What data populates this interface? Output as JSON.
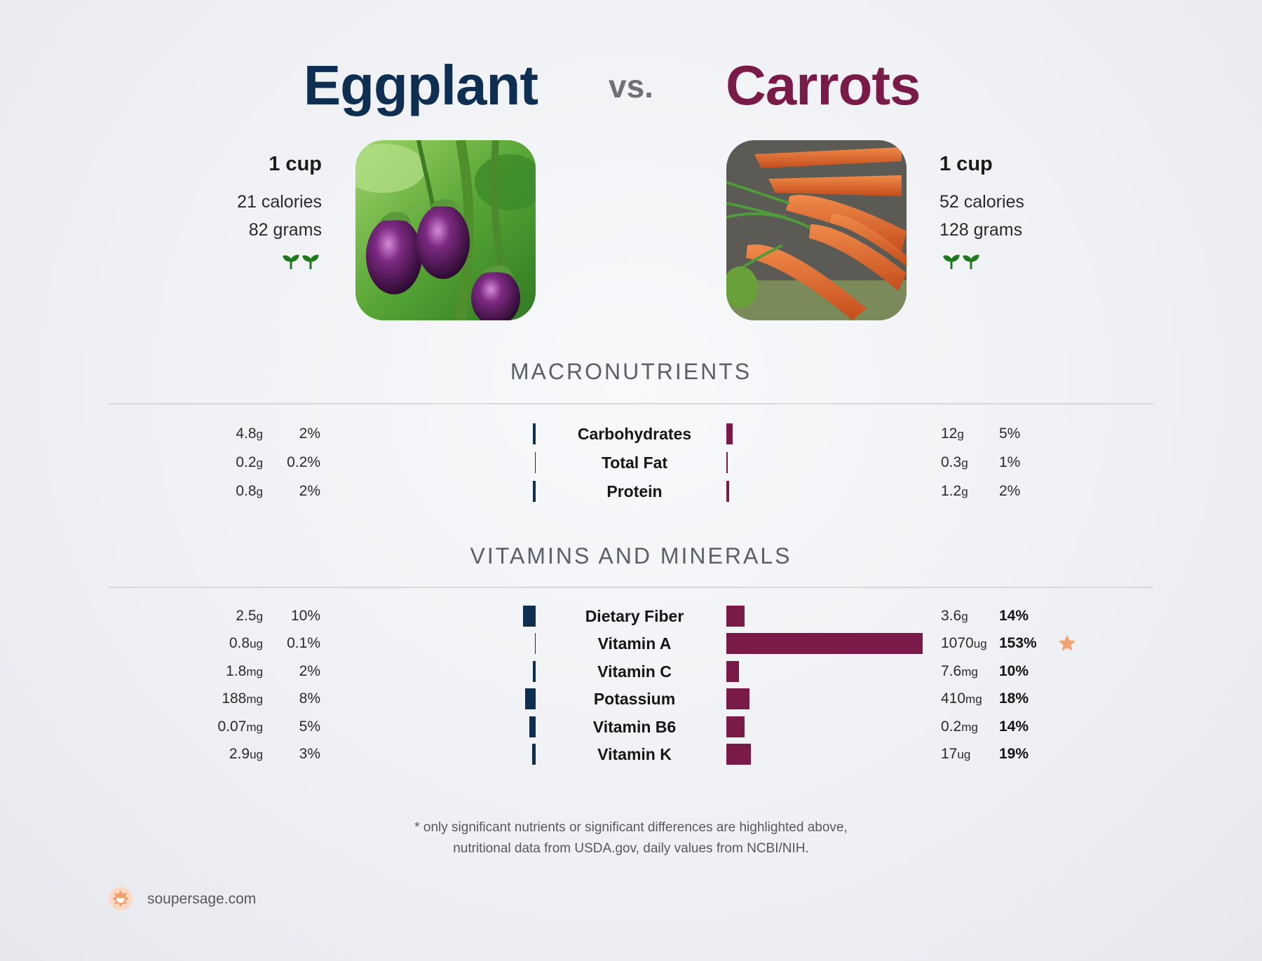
{
  "header": {
    "left_title": "Eggplant",
    "vs": "vs.",
    "right_title": "Carrots"
  },
  "left_food": {
    "serving": "1 cup",
    "calories": "21 calories",
    "grams": "82 grams",
    "icon": "sprouts-icon"
  },
  "right_food": {
    "serving": "1 cup",
    "calories": "52 calories",
    "grams": "128 grams",
    "icon": "sprouts-icon"
  },
  "sections": {
    "macros_title": "MACRONUTRIENTS",
    "vitamins_title": "VITAMINS AND MINERALS"
  },
  "colors": {
    "left": "#0e2e52",
    "right": "#7a1a48",
    "star": "#f2a06e",
    "sprout": "#1f7a1f"
  },
  "chart_data": [
    {
      "type": "bar",
      "title": "MACRONUTRIENTS",
      "categories": [
        "Carbohydrates",
        "Total Fat",
        "Protein"
      ],
      "series": [
        {
          "name": "Eggplant",
          "amounts": [
            "4.8",
            "0.2",
            "0.8"
          ],
          "units": [
            "g",
            "g",
            "g"
          ],
          "percent_labels": [
            "2%",
            "0.2%",
            "2%"
          ],
          "values": [
            2,
            0.2,
            2
          ]
        },
        {
          "name": "Carrots",
          "amounts": [
            "12",
            "0.3",
            "1.2"
          ],
          "units": [
            "g",
            "g",
            "g"
          ],
          "percent_labels": [
            "5%",
            "1%",
            "2%"
          ],
          "values": [
            5,
            1,
            2
          ]
        }
      ]
    },
    {
      "type": "bar",
      "title": "VITAMINS AND MINERALS",
      "categories": [
        "Dietary Fiber",
        "Vitamin A",
        "Vitamin C",
        "Potassium",
        "Vitamin B6",
        "Vitamin K"
      ],
      "series": [
        {
          "name": "Eggplant",
          "amounts": [
            "2.5",
            "0.8",
            "1.8",
            "188",
            "0.07",
            "2.9"
          ],
          "units": [
            "g",
            "ug",
            "mg",
            "mg",
            "mg",
            "ug"
          ],
          "percent_labels": [
            "10%",
            "0.1%",
            "2%",
            "8%",
            "5%",
            "3%"
          ],
          "values": [
            10,
            0.1,
            2,
            8,
            5,
            3
          ]
        },
        {
          "name": "Carrots",
          "amounts": [
            "3.6",
            "1070",
            "7.6",
            "410",
            "0.2",
            "17"
          ],
          "units": [
            "g",
            "ug",
            "mg",
            "mg",
            "mg",
            "ug"
          ],
          "percent_labels": [
            "14%",
            "153%",
            "10%",
            "18%",
            "14%",
            "19%"
          ],
          "values": [
            14,
            153,
            10,
            18,
            14,
            19
          ]
        }
      ],
      "highlighted": "Vitamin A"
    }
  ],
  "footnote": {
    "line1": "* only significant nutrients or significant differences are highlighted above,",
    "line2": "nutritional data from USDA.gov, daily values from NCBI/NIH."
  },
  "brand": {
    "text": "soupersage.com",
    "icon": "soupersage-logo-icon"
  }
}
